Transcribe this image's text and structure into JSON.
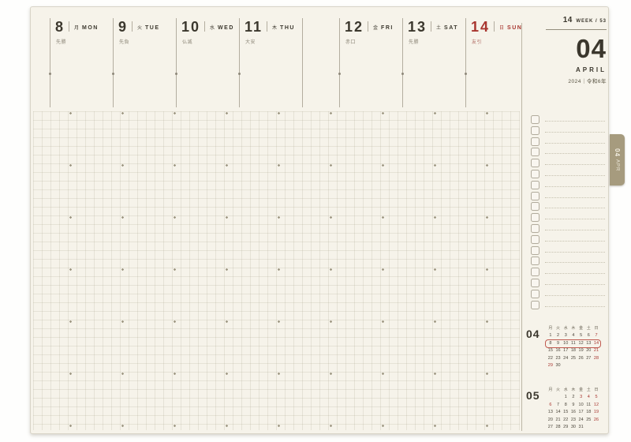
{
  "page": {
    "week_info": {
      "week_number": "14",
      "week_label": "WEEK / 53"
    },
    "month_block": {
      "month_number": "04",
      "month_name": "APRIL",
      "year_line": "2024｜令和6年"
    },
    "tab": {
      "label_month": "04",
      "label_abbr": "APR"
    },
    "days": [
      {
        "date": "8",
        "kanji": "月",
        "abbr": "MON",
        "rokuyo": "先勝",
        "color": "dark"
      },
      {
        "date": "9",
        "kanji": "火",
        "abbr": "TUE",
        "rokuyo": "先負",
        "color": "dark"
      },
      {
        "date": "10",
        "kanji": "水",
        "abbr": "WED",
        "rokuyo": "仏滅",
        "color": "dark"
      },
      {
        "date": "11",
        "kanji": "木",
        "abbr": "THU",
        "rokuyo": "大安",
        "color": "dark"
      },
      {
        "date": "12",
        "kanji": "金",
        "abbr": "FRI",
        "rokuyo": "赤口",
        "color": "dark"
      },
      {
        "date": "13",
        "kanji": "土",
        "abbr": "SAT",
        "rokuyo": "先勝",
        "color": "dark"
      },
      {
        "date": "14",
        "kanji": "日",
        "abbr": "SUN",
        "rokuyo": "友引",
        "color": "red"
      }
    ],
    "checklist": {
      "row_count": 18
    },
    "mini_calendars": [
      {
        "label": "04",
        "weekday_header": [
          "月",
          "火",
          "水",
          "木",
          "金",
          "土",
          "日"
        ],
        "weeks": [
          [
            "1",
            "2",
            "3",
            "4",
            "5",
            "6",
            "7"
          ],
          [
            "8",
            "9",
            "10",
            "11",
            "12",
            "13",
            "14"
          ],
          [
            "15",
            "16",
            "17",
            "18",
            "19",
            "20",
            "21"
          ],
          [
            "22",
            "23",
            "24",
            "25",
            "26",
            "27",
            "28"
          ],
          [
            "29",
            "30",
            "",
            "",
            "",
            "",
            ""
          ]
        ],
        "red_days": [
          "7",
          "14",
          "21",
          "28",
          "29"
        ],
        "highlight_week_index": 1
      },
      {
        "label": "05",
        "weekday_header": [
          "月",
          "火",
          "水",
          "木",
          "金",
          "土",
          "日"
        ],
        "weeks": [
          [
            "",
            "",
            "1",
            "2",
            "3",
            "4",
            "5"
          ],
          [
            "6",
            "7",
            "8",
            "9",
            "10",
            "11",
            "12"
          ],
          [
            "13",
            "14",
            "15",
            "16",
            "17",
            "18",
            "19"
          ],
          [
            "20",
            "21",
            "22",
            "23",
            "24",
            "25",
            "26"
          ],
          [
            "27",
            "28",
            "29",
            "30",
            "31",
            "",
            ""
          ]
        ],
        "red_days": [
          "3",
          "4",
          "5",
          "6",
          "12",
          "19",
          "26"
        ],
        "highlight_week_index": null
      }
    ],
    "colors": {
      "paper": "#f6f3ea",
      "ink": "#3b372d",
      "red": "#a8352f",
      "tab": "#a69b7e",
      "line": "#b3ad9f",
      "grid": "#e8e5d8"
    }
  }
}
